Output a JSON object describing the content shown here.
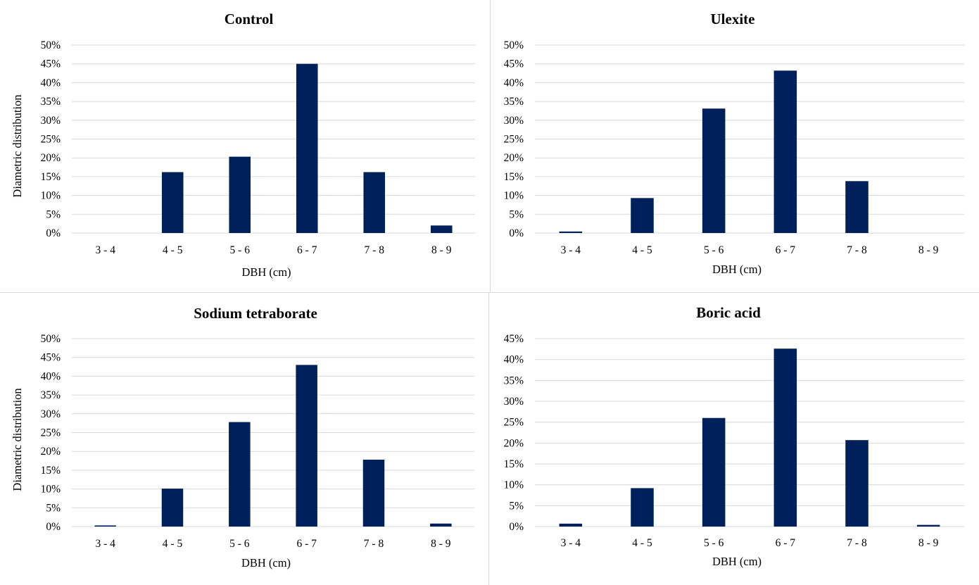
{
  "chart_data": [
    {
      "type": "bar",
      "title": "Control",
      "categories": [
        "3 - 4",
        "4 - 5",
        "5 - 6",
        "6 - 7",
        "7 - 8",
        "8 - 9"
      ],
      "values": [
        0,
        16.2,
        20.3,
        45.0,
        16.2,
        2.0
      ],
      "xlabel": "DBH (cm)",
      "ylabel": "Diametric distribution",
      "ylim": [
        0,
        50
      ],
      "yticks": [
        "0%",
        "5%",
        "10%",
        "15%",
        "20%",
        "25%",
        "30%",
        "35%",
        "40%",
        "45%",
        "50%"
      ],
      "grid": true,
      "bar_color": "#00205b"
    },
    {
      "type": "bar",
      "title": "Ulexite",
      "categories": [
        "3 - 4",
        "4 - 5",
        "5 - 6",
        "6 - 7",
        "7 - 8",
        "8 - 9"
      ],
      "values": [
        0.4,
        9.3,
        33.1,
        43.2,
        13.8,
        0
      ],
      "xlabel": "DBH (cm)",
      "ylabel": "",
      "ylim": [
        0,
        50
      ],
      "yticks": [
        "0%",
        "5%",
        "10%",
        "15%",
        "20%",
        "25%",
        "30%",
        "35%",
        "40%",
        "45%",
        "50%"
      ],
      "grid": true,
      "bar_color": "#00205b"
    },
    {
      "type": "bar",
      "title": "Sodium tetraborate",
      "categories": [
        "3 - 4",
        "4 - 5",
        "5 - 6",
        "6 - 7",
        "7 - 8",
        "8 - 9"
      ],
      "values": [
        0.3,
        10.1,
        27.8,
        43.0,
        17.8,
        0.8
      ],
      "xlabel": "DBH (cm)",
      "ylabel": "Diametric distribution",
      "ylim": [
        0,
        50
      ],
      "yticks": [
        "0%",
        "5%",
        "10%",
        "15%",
        "20%",
        "25%",
        "30%",
        "35%",
        "40%",
        "45%",
        "50%"
      ],
      "grid": true,
      "bar_color": "#00205b"
    },
    {
      "type": "bar",
      "title": "Boric acid",
      "categories": [
        "3 - 4",
        "4 - 5",
        "5 - 6",
        "6 - 7",
        "7 - 8",
        "8 - 9"
      ],
      "values": [
        0.7,
        9.2,
        26.0,
        42.6,
        20.7,
        0.4
      ],
      "xlabel": "DBH (cm)",
      "ylabel": "",
      "ylim": [
        0,
        45
      ],
      "yticks": [
        "0%",
        "5%",
        "10%",
        "15%",
        "20%",
        "25%",
        "30%",
        "35%",
        "40%",
        "45%"
      ],
      "grid": true,
      "bar_color": "#00205b"
    }
  ]
}
